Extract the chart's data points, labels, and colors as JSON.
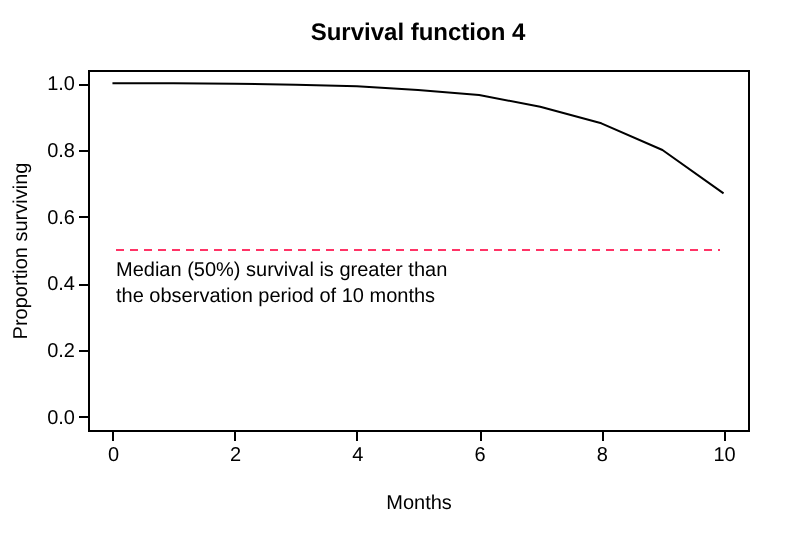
{
  "chart_data": {
    "type": "line",
    "title": "Survival function 4",
    "xlabel": "Months",
    "ylabel": "Proportion surviving",
    "x": [
      0,
      1,
      2,
      3,
      4,
      5,
      6,
      7,
      8,
      9,
      10
    ],
    "series": [
      {
        "color": "#000000",
        "values": [
          1.0,
          1.0,
          0.999,
          0.996,
          0.991,
          0.98,
          0.965,
          0.93,
          0.88,
          0.8,
          0.67
        ]
      }
    ],
    "xlim": [
      -0.4,
      10.4
    ],
    "xticks": [
      0,
      2,
      4,
      6,
      8,
      10
    ],
    "ylim": [
      -0.04,
      1.04
    ],
    "yticks": [
      {
        "value": 0,
        "label": "0.0"
      },
      {
        "value": 0.2,
        "label": "0.2"
      },
      {
        "value": 0.4,
        "label": "0.4"
      },
      {
        "value": 0.6,
        "label": "0.6"
      },
      {
        "value": 0.8,
        "label": "0.8"
      },
      {
        "value": 1,
        "label": "1.0"
      }
    ],
    "ref_lines": [
      {
        "axis": "y",
        "value": 0.5,
        "color": "#ff3366",
        "line_style": "dashed"
      }
    ],
    "annotations": [
      "Median (50%) survival is greater than\n the observation period of 10 months"
    ],
    "grid": false,
    "marker": "none",
    "line_style": "solid"
  }
}
